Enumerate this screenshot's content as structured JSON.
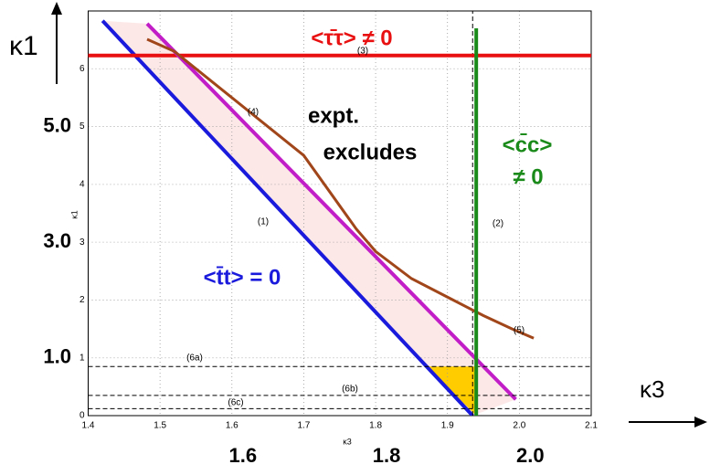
{
  "chart_data": {
    "type": "line",
    "x_label": "κ3",
    "y_label": "κ1",
    "xlim": [
      1.4,
      2.1
    ],
    "ylim": [
      0,
      7
    ],
    "xticks": [
      1.4,
      1.5,
      1.6,
      1.7,
      1.8,
      1.9,
      {
        "value": 2,
        "label": "2.0"
      },
      2.1
    ],
    "yticks": [
      0,
      1,
      2,
      3,
      4,
      5,
      6
    ],
    "big_xticks": [
      1.6,
      1.8,
      {
        "value": 2,
        "label": "2.0"
      }
    ],
    "big_yticks": [
      {
        "value": 5,
        "label": "5.0"
      },
      {
        "value": 3,
        "label": "3.0"
      },
      {
        "value": 1,
        "label": "1.0"
      }
    ],
    "grid": true,
    "series": [
      {
        "name": "(1)",
        "color": "#1a1adc",
        "x": [
          1.42,
          1.935
        ],
        "values": [
          6.83,
          0
        ]
      },
      {
        "name": "(2)",
        "color": "#000000",
        "dash": true,
        "x": [
          1.935,
          1.935
        ],
        "values": [
          0,
          7
        ]
      },
      {
        "name": "(3)",
        "color": "#e81010",
        "x": [
          1.4,
          2.1
        ],
        "values": [
          6.23,
          6.23
        ]
      },
      {
        "name": "(4)",
        "color": "#c21ec8",
        "x": [
          1.482,
          1.995
        ],
        "values": [
          6.78,
          0.28
        ]
      },
      {
        "name": "(5)",
        "color": "#a0461a",
        "x": [
          1.482,
          1.52,
          1.6,
          1.7,
          1.773,
          1.8,
          1.85,
          1.9,
          1.95,
          1.99,
          2.02
        ],
        "values": [
          6.51,
          6.3,
          5.5,
          4.5,
          3.23,
          2.84,
          2.37,
          2.05,
          1.73,
          1.5,
          1.34
        ]
      },
      {
        "name": "(6a)",
        "color": "#000000",
        "dash": true,
        "x": [
          1.4,
          2.1
        ],
        "values": [
          0.85,
          0.85
        ]
      },
      {
        "name": "(6b)",
        "color": "#000000",
        "dash": true,
        "x": [
          1.4,
          2.1
        ],
        "values": [
          0.35,
          0.35
        ]
      },
      {
        "name": "(6c)",
        "color": "#000000",
        "dash": true,
        "x": [
          1.4,
          2.1
        ],
        "values": [
          0.12,
          0.12
        ]
      },
      {
        "color": "#1a8a1a",
        "x": [
          1.94,
          1.94
        ],
        "values": [
          0,
          6.7
        ]
      }
    ],
    "annotations": [
      {
        "text": "<τ̄τ> ≠ 0",
        "color": "#e81010"
      },
      {
        "text": "expt.",
        "color": "#000000"
      },
      {
        "text": "excludes",
        "color": "#000000"
      },
      {
        "text": "<c̄c>",
        "color": "#1a8a1a"
      },
      {
        "text": "≠ 0",
        "color": "#1a8a1a"
      },
      {
        "text": "<t̄t> = 0",
        "color": "#1a1adc"
      }
    ]
  }
}
